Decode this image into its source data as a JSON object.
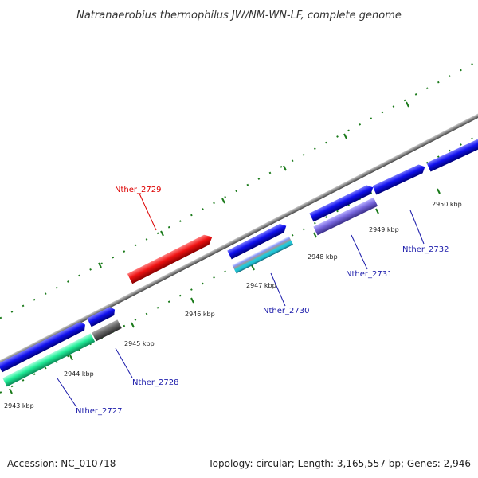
{
  "title": "Natranaerobius thermophilus JW/NM-WN-LF, complete genome",
  "ticks": [
    {
      "label": "2943 kbp"
    },
    {
      "label": "2944 kbp"
    },
    {
      "label": "2945 kbp"
    },
    {
      "label": "2946 kbp"
    },
    {
      "label": "2947 kbp"
    },
    {
      "label": "2948 kbp"
    },
    {
      "label": "2949 kbp"
    },
    {
      "label": "2950 kbp"
    }
  ],
  "genes": [
    {
      "label": "Nther_2729",
      "color": "#dd0000"
    },
    {
      "label": "Nther_2730",
      "color": "#1a1aaa"
    },
    {
      "label": "Nther_2731",
      "color": "#1a1aaa"
    },
    {
      "label": "Nther_2732",
      "color": "#1a1aaa"
    },
    {
      "label": "Nther_2728",
      "color": "#1a1aaa"
    },
    {
      "label": "Nther_2727",
      "color": "#1a1aaa"
    }
  ],
  "feature_colors": {
    "cds_forward": "#1010ee",
    "cds_highlight": "#ee1111",
    "cds_lavender": "#7766dd",
    "cds_green": "#22ee99",
    "cds_gray": "#666666",
    "cds_striped": "#22bbcc",
    "backbone": "#888888",
    "ticks": "#1a7a1a"
  },
  "footer": {
    "accession": "Accession: NC_010718",
    "summary": "Topology: circular; Length: 3,165,557 bp; Genes: 2,946"
  }
}
